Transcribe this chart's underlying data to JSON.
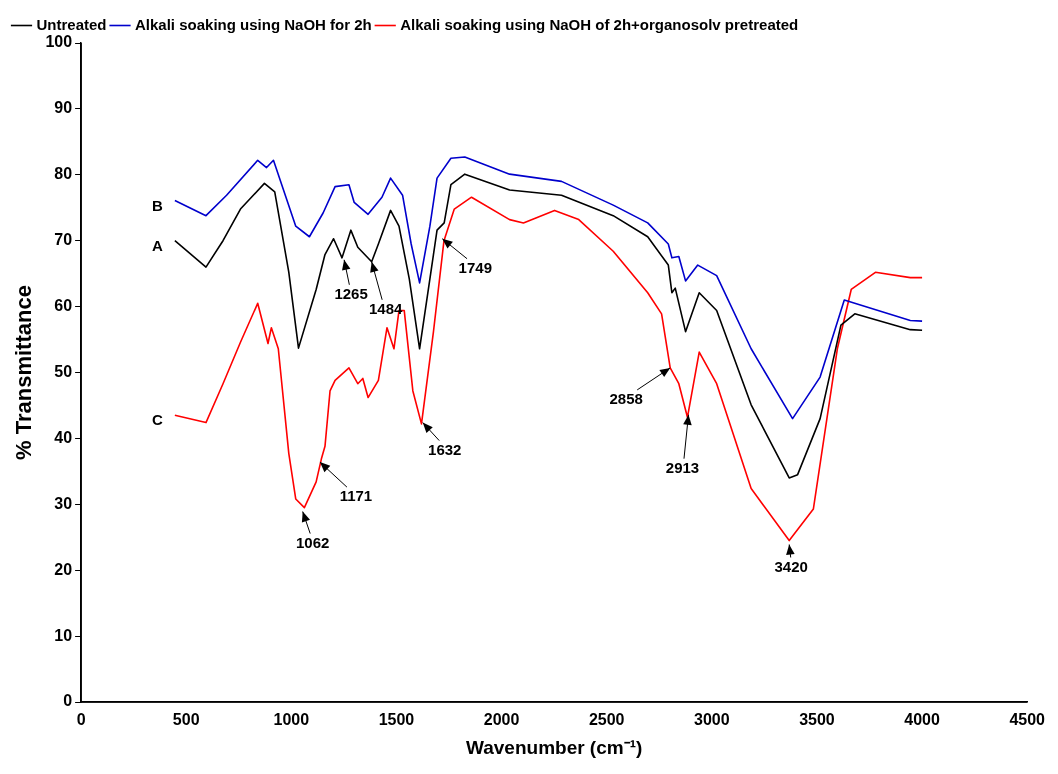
{
  "chart_data": {
    "type": "line",
    "xlabel": "Wavenumber (cm⁻¹)",
    "ylabel": "% Transmittance",
    "xlim": [
      0,
      4500
    ],
    "xticks": [
      0,
      500,
      1000,
      1500,
      2000,
      2500,
      3000,
      3500,
      4000,
      4500
    ],
    "ylim": [
      0,
      100
    ],
    "yticks": [
      0,
      10,
      20,
      30,
      40,
      50,
      60,
      70,
      80,
      90,
      100
    ],
    "grid": false,
    "legend": "top left",
    "marker": "none",
    "line_style": "solid",
    "series": [
      {
        "name": "Untreated",
        "color": "#000000",
        "x": [
          446,
          594,
          675,
          758,
          872,
          921,
          988,
          1034,
          1118,
          1160,
          1201,
          1241,
          1283,
          1316,
          1349,
          1382,
          1414,
          1472,
          1512,
          1561,
          1610,
          1659,
          1693,
          1727,
          1759,
          1825,
          2038,
          2285,
          2531,
          2695,
          2793,
          2810,
          2826,
          2875,
          2940,
          3023,
          3187,
          3368,
          3408,
          3515,
          3614,
          3680,
          3944,
          4000
        ],
        "values": [
          70.0,
          66.0,
          70.0,
          74.8,
          78.7,
          77.4,
          65.2,
          53.7,
          62.6,
          67.9,
          70.3,
          67.4,
          71.6,
          69.0,
          67.9,
          66.8,
          69.5,
          74.6,
          72.2,
          64.2,
          53.6,
          64.2,
          71.6,
          72.7,
          78.5,
          80.1,
          77.7,
          76.9,
          73.8,
          70.6,
          66.3,
          62.1,
          62.8,
          56.2,
          62.1,
          59.4,
          45.1,
          34.0,
          34.5,
          43.0,
          57.2,
          58.9,
          56.5,
          56.4
        ]
      },
      {
        "name": "Alkali soaking using NaOH for 2h",
        "color": "#0000cc",
        "x": [
          446,
          594,
          692,
          840,
          882,
          915,
          1021,
          1086,
          1151,
          1208,
          1274,
          1299,
          1365,
          1431,
          1472,
          1529,
          1570,
          1610,
          1659,
          1693,
          1759,
          1825,
          2038,
          2285,
          2531,
          2695,
          2793,
          2810,
          2843,
          2875,
          2933,
          3023,
          3187,
          3384,
          3515,
          3630,
          3944,
          4000
        ],
        "values": [
          76.1,
          73.8,
          76.9,
          82.2,
          81.1,
          82.2,
          72.2,
          70.6,
          74.2,
          78.2,
          78.5,
          75.8,
          74.0,
          76.6,
          79.5,
          76.9,
          69.5,
          63.6,
          72.2,
          79.5,
          82.5,
          82.7,
          80.1,
          79.0,
          75.4,
          72.7,
          69.5,
          67.4,
          67.6,
          63.9,
          66.3,
          64.7,
          53.6,
          43.0,
          49.3,
          61.0,
          57.9,
          57.8
        ]
      },
      {
        "name": "Alkali soaking using NaOH of 2h+organosolv pretreated",
        "color": "#ff0000",
        "x": [
          446,
          594,
          675,
          758,
          840,
          889,
          905,
          938,
          988,
          1021,
          1062,
          1118,
          1143,
          1160,
          1184,
          1208,
          1274,
          1316,
          1340,
          1365,
          1414,
          1455,
          1488,
          1512,
          1537,
          1578,
          1619,
          1676,
          1726,
          1775,
          1857,
          2038,
          2104,
          2252,
          2367,
          2531,
          2695,
          2761,
          2802,
          2843,
          2884,
          2940,
          3023,
          3187,
          3368,
          3483,
          3597,
          3663,
          3778,
          3944,
          4000
        ],
        "values": [
          43.5,
          42.4,
          48.3,
          54.6,
          60.5,
          54.4,
          56.8,
          53.6,
          37.7,
          30.8,
          29.5,
          33.4,
          36.9,
          38.8,
          47.2,
          48.8,
          50.7,
          48.3,
          49.1,
          46.2,
          48.8,
          56.8,
          53.6,
          59.4,
          59.4,
          47.2,
          42.2,
          56.2,
          70.0,
          74.8,
          76.6,
          73.2,
          72.7,
          74.6,
          73.2,
          68.4,
          62.1,
          58.9,
          50.7,
          48.3,
          43.2,
          53.1,
          48.3,
          32.4,
          24.5,
          29.3,
          53.6,
          62.6,
          65.2,
          64.4,
          64.4
        ]
      }
    ],
    "annotations": [
      "A",
      "B",
      "C",
      {
        "text": "1265",
        "x": 1251,
        "y": 67.1
      },
      {
        "text": "1484",
        "x": 1382,
        "y": 66.8
      },
      {
        "text": "1749",
        "x": 1718,
        "y": 70.3
      },
      {
        "text": "1632",
        "x": 1625,
        "y": 42.4
      },
      {
        "text": "1171",
        "x": 1136,
        "y": 36.4
      },
      {
        "text": "1062",
        "x": 1054,
        "y": 28.9
      },
      {
        "text": "2858",
        "x": 2802,
        "y": 50.7
      },
      {
        "text": "2913",
        "x": 2889,
        "y": 43.6
      },
      {
        "text": "3420",
        "x": 3368,
        "y": 23.9
      }
    ]
  }
}
